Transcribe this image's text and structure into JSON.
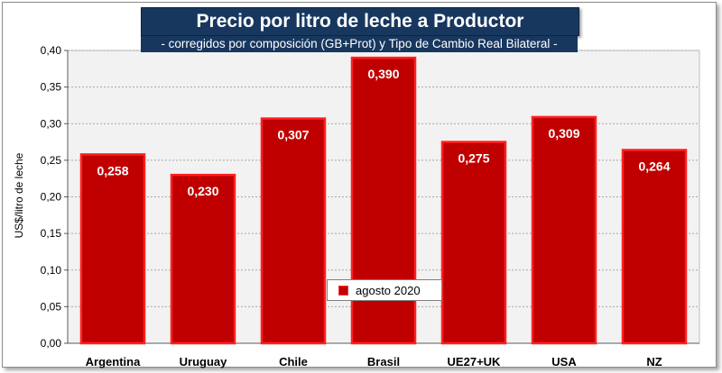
{
  "chart_data": {
    "type": "bar",
    "title": "Precio por litro de leche a Productor",
    "subtitle": "-  corregidos por composición (GB+Prot) y Tipo de Cambio Real Bilateral -",
    "ylabel": "US$/litro de leche",
    "xlabel": "",
    "categories": [
      "Argentina",
      "Uruguay",
      "Chile",
      "Brasil",
      "UE27+UK",
      "USA",
      "NZ"
    ],
    "series": [
      {
        "name": "agosto 2020",
        "values": [
          0.258,
          0.23,
          0.307,
          0.39,
          0.275,
          0.309,
          0.264
        ]
      }
    ],
    "value_labels": [
      "0,258",
      "0,230",
      "0,307",
      "0,390",
      "0,275",
      "0,309",
      "0,264"
    ],
    "ylim": [
      0,
      0.4
    ],
    "yticks": [
      0,
      0.05,
      0.1,
      0.15,
      0.2,
      0.25,
      0.3,
      0.35,
      0.4
    ],
    "ytick_labels": [
      "0,00",
      "0,05",
      "0,10",
      "0,15",
      "0,20",
      "0,25",
      "0,30",
      "0,35",
      "0,40"
    ],
    "grid": true,
    "legend_position": "center",
    "colors": {
      "bar_fill": "#c00000",
      "bar_border": "#ff2020",
      "plot_bg": "#f2f2f2",
      "title_bg": "#17375e"
    }
  }
}
